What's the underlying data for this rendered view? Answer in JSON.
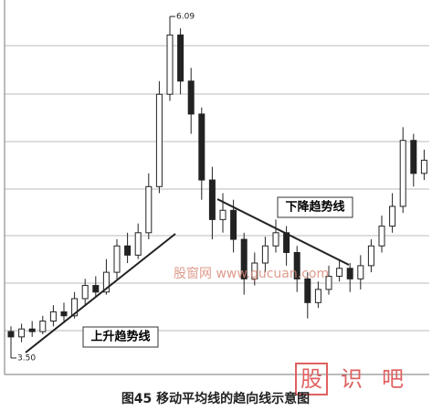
{
  "chart_data": {
    "type": "candlestick",
    "ylim": [
      3.375,
      6.215
    ],
    "open": [
      3.7,
      3.66,
      3.72,
      3.7,
      3.78,
      3.85,
      3.82,
      3.95,
      4.05,
      4.0,
      4.15,
      4.35,
      4.28,
      4.45,
      4.8,
      5.5,
      5.95,
      5.6,
      5.35,
      4.85,
      4.55,
      4.62,
      4.4,
      4.1,
      4.22,
      4.35,
      4.45,
      4.3,
      4.1,
      3.92,
      4.02,
      4.12,
      4.18,
      4.1,
      4.2,
      4.35,
      4.5,
      4.65,
      5.15,
      4.9
    ],
    "close": [
      3.66,
      3.72,
      3.7,
      3.78,
      3.85,
      3.82,
      3.95,
      4.05,
      4.0,
      4.15,
      4.35,
      4.28,
      4.45,
      4.8,
      5.5,
      5.95,
      5.6,
      5.35,
      4.85,
      4.55,
      4.62,
      4.4,
      4.1,
      4.22,
      4.35,
      4.45,
      4.3,
      4.1,
      3.92,
      4.02,
      4.12,
      4.18,
      4.1,
      4.2,
      4.35,
      4.5,
      4.65,
      5.15,
      4.9,
      5.0
    ],
    "high": [
      3.74,
      3.76,
      3.78,
      3.82,
      3.9,
      3.92,
      4.0,
      4.1,
      4.12,
      4.25,
      4.4,
      4.45,
      4.52,
      4.9,
      5.6,
      6.09,
      6.0,
      5.7,
      5.4,
      4.95,
      4.75,
      4.7,
      4.45,
      4.3,
      4.42,
      4.55,
      4.5,
      4.35,
      4.15,
      4.08,
      4.2,
      4.25,
      4.22,
      4.28,
      4.4,
      4.58,
      4.75,
      5.25,
      5.2,
      5.08
    ],
    "low": [
      3.5,
      3.62,
      3.66,
      3.68,
      3.74,
      3.78,
      3.8,
      3.9,
      3.96,
      3.98,
      4.1,
      4.22,
      4.25,
      4.4,
      4.75,
      5.45,
      5.5,
      5.2,
      4.7,
      4.4,
      4.45,
      4.3,
      3.98,
      4.05,
      4.15,
      4.3,
      4.2,
      4.0,
      3.8,
      3.88,
      3.98,
      4.08,
      4.0,
      4.02,
      4.15,
      4.3,
      4.45,
      4.6,
      4.8,
      4.85
    ],
    "marked_prices": [
      6.09,
      {
        "value": 3.5,
        "label": "3.50"
      }
    ],
    "annotations": [
      "下降趋势线",
      "上升趋势线"
    ],
    "watermark": "股窗网 www.gucuan.com",
    "logo": [
      "股",
      "识",
      "吧"
    ],
    "caption": "图45   移动平均线的趋向线示意图"
  }
}
